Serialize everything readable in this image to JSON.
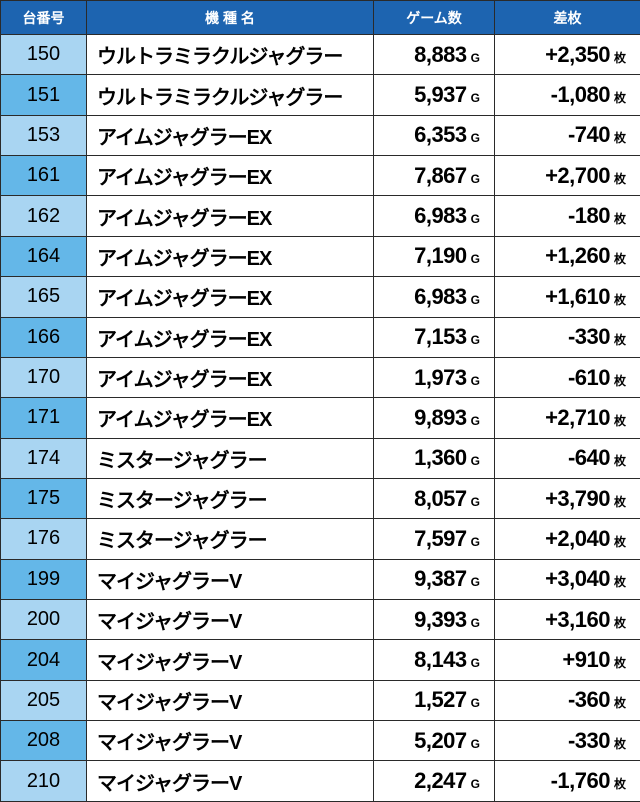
{
  "header": {
    "machine_no": "台番号",
    "model_name": "機 種 名",
    "games": "ゲーム数",
    "difference": "差枚"
  },
  "units": {
    "games": "G",
    "difference": "枚"
  },
  "rows": [
    {
      "no": "150",
      "name": "ウルトラミラクルジャグラー",
      "games": "8,883",
      "diff": "+2,350"
    },
    {
      "no": "151",
      "name": "ウルトラミラクルジャグラー",
      "games": "5,937",
      "diff": "-1,080"
    },
    {
      "no": "153",
      "name": "アイムジャグラーEX",
      "games": "6,353",
      "diff": "-740"
    },
    {
      "no": "161",
      "name": "アイムジャグラーEX",
      "games": "7,867",
      "diff": "+2,700"
    },
    {
      "no": "162",
      "name": "アイムジャグラーEX",
      "games": "6,983",
      "diff": "-180"
    },
    {
      "no": "164",
      "name": "アイムジャグラーEX",
      "games": "7,190",
      "diff": "+1,260"
    },
    {
      "no": "165",
      "name": "アイムジャグラーEX",
      "games": "6,983",
      "diff": "+1,610"
    },
    {
      "no": "166",
      "name": "アイムジャグラーEX",
      "games": "7,153",
      "diff": "-330"
    },
    {
      "no": "170",
      "name": "アイムジャグラーEX",
      "games": "1,973",
      "diff": "-610"
    },
    {
      "no": "171",
      "name": "アイムジャグラーEX",
      "games": "9,893",
      "diff": "+2,710"
    },
    {
      "no": "174",
      "name": "ミスタージャグラー",
      "games": "1,360",
      "diff": "-640"
    },
    {
      "no": "175",
      "name": "ミスタージャグラー",
      "games": "8,057",
      "diff": "+3,790"
    },
    {
      "no": "176",
      "name": "ミスタージャグラー",
      "games": "7,597",
      "diff": "+2,040"
    },
    {
      "no": "199",
      "name": "マイジャグラーV",
      "games": "9,387",
      "diff": "+3,040"
    },
    {
      "no": "200",
      "name": "マイジャグラーV",
      "games": "9,393",
      "diff": "+3,160"
    },
    {
      "no": "204",
      "name": "マイジャグラーV",
      "games": "8,143",
      "diff": "+910"
    },
    {
      "no": "205",
      "name": "マイジャグラーV",
      "games": "1,527",
      "diff": "-360"
    },
    {
      "no": "208",
      "name": "マイジャグラーV",
      "games": "5,207",
      "diff": "-330"
    },
    {
      "no": "210",
      "name": "マイジャグラーV",
      "games": "2,247",
      "diff": "-1,760"
    }
  ]
}
